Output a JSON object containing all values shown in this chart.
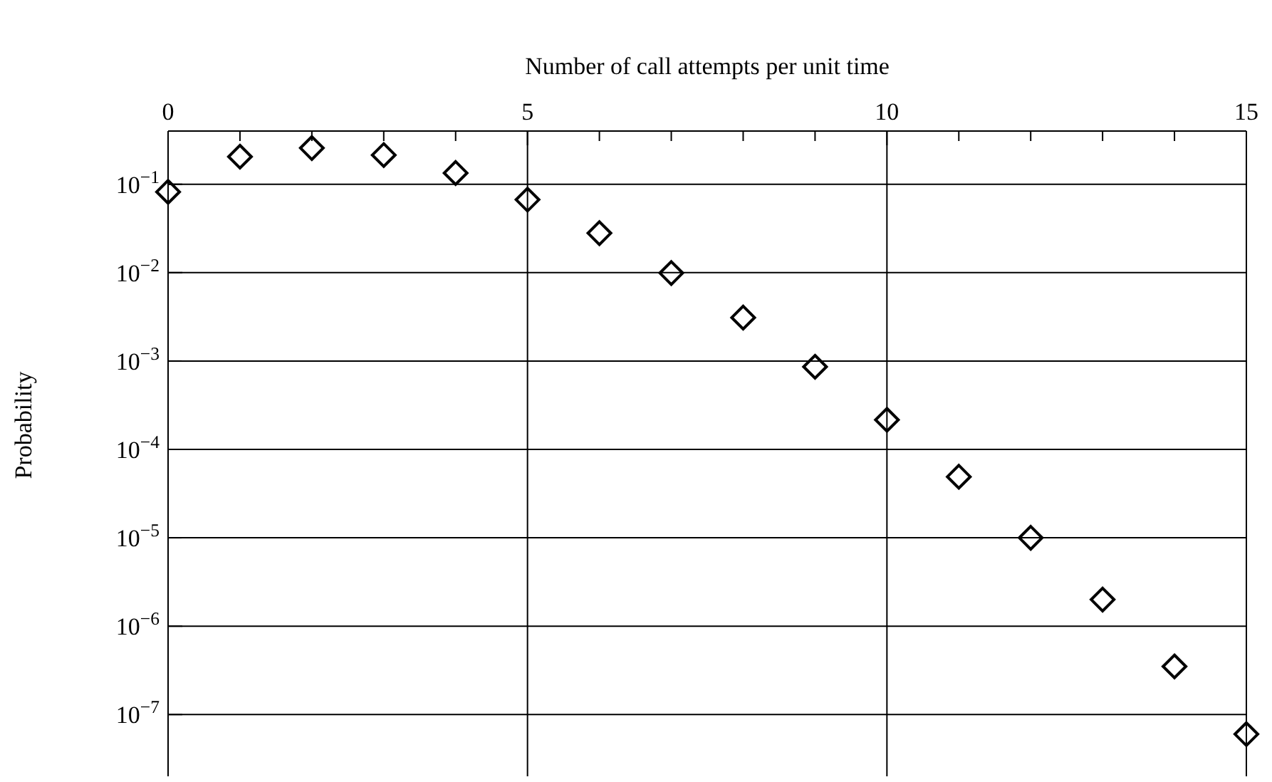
{
  "chart_data": {
    "type": "scatter",
    "xlabel": "Number of call attempts per unit time",
    "ylabel": "Probability",
    "x": [
      0,
      1,
      2,
      3,
      4,
      5,
      6,
      7,
      8,
      9,
      10,
      11,
      12,
      13,
      14,
      15
    ],
    "values": [
      0.082,
      0.205,
      0.257,
      0.214,
      0.134,
      0.067,
      0.028,
      0.0099,
      0.0031,
      0.00086,
      0.000216,
      4.9e-05,
      1e-05,
      2e-06,
      3.5e-07,
      6e-08
    ],
    "color": "#000000",
    "marker": "diamond",
    "log": "y",
    "grid": true,
    "xlim": [
      0,
      15
    ],
    "xticks": [
      0,
      {
        "value": 1,
        "label": null
      },
      {
        "value": 2,
        "label": null
      },
      {
        "value": 3,
        "label": null
      },
      {
        "value": 4,
        "label": null
      },
      5,
      {
        "value": 6,
        "label": null
      },
      {
        "value": 7,
        "label": null
      },
      {
        "value": 8,
        "label": null
      },
      {
        "value": 9,
        "label": null
      },
      10,
      {
        "value": 11,
        "label": null
      },
      {
        "value": 12,
        "label": null
      },
      {
        "value": 13,
        "label": null
      },
      {
        "value": 14,
        "label": null
      },
      15
    ],
    "ylim": [
      2e-08,
      0.4
    ],
    "yticks": [
      {
        "value": 0.1,
        "label": "10$^{−1}$"
      },
      {
        "value": 0.01,
        "label": "10$^{−2}$"
      },
      {
        "value": 0.001,
        "label": "10$^{−3}$"
      },
      {
        "value": 0.0001,
        "label": "10$^{−4}$"
      },
      {
        "value": 1e-05,
        "label": "10$^{−5}$"
      },
      {
        "value": 1e-06,
        "label": "10$^{−6}$"
      },
      {
        "value": 1e-07,
        "label": "10$^{−7}$"
      }
    ]
  }
}
